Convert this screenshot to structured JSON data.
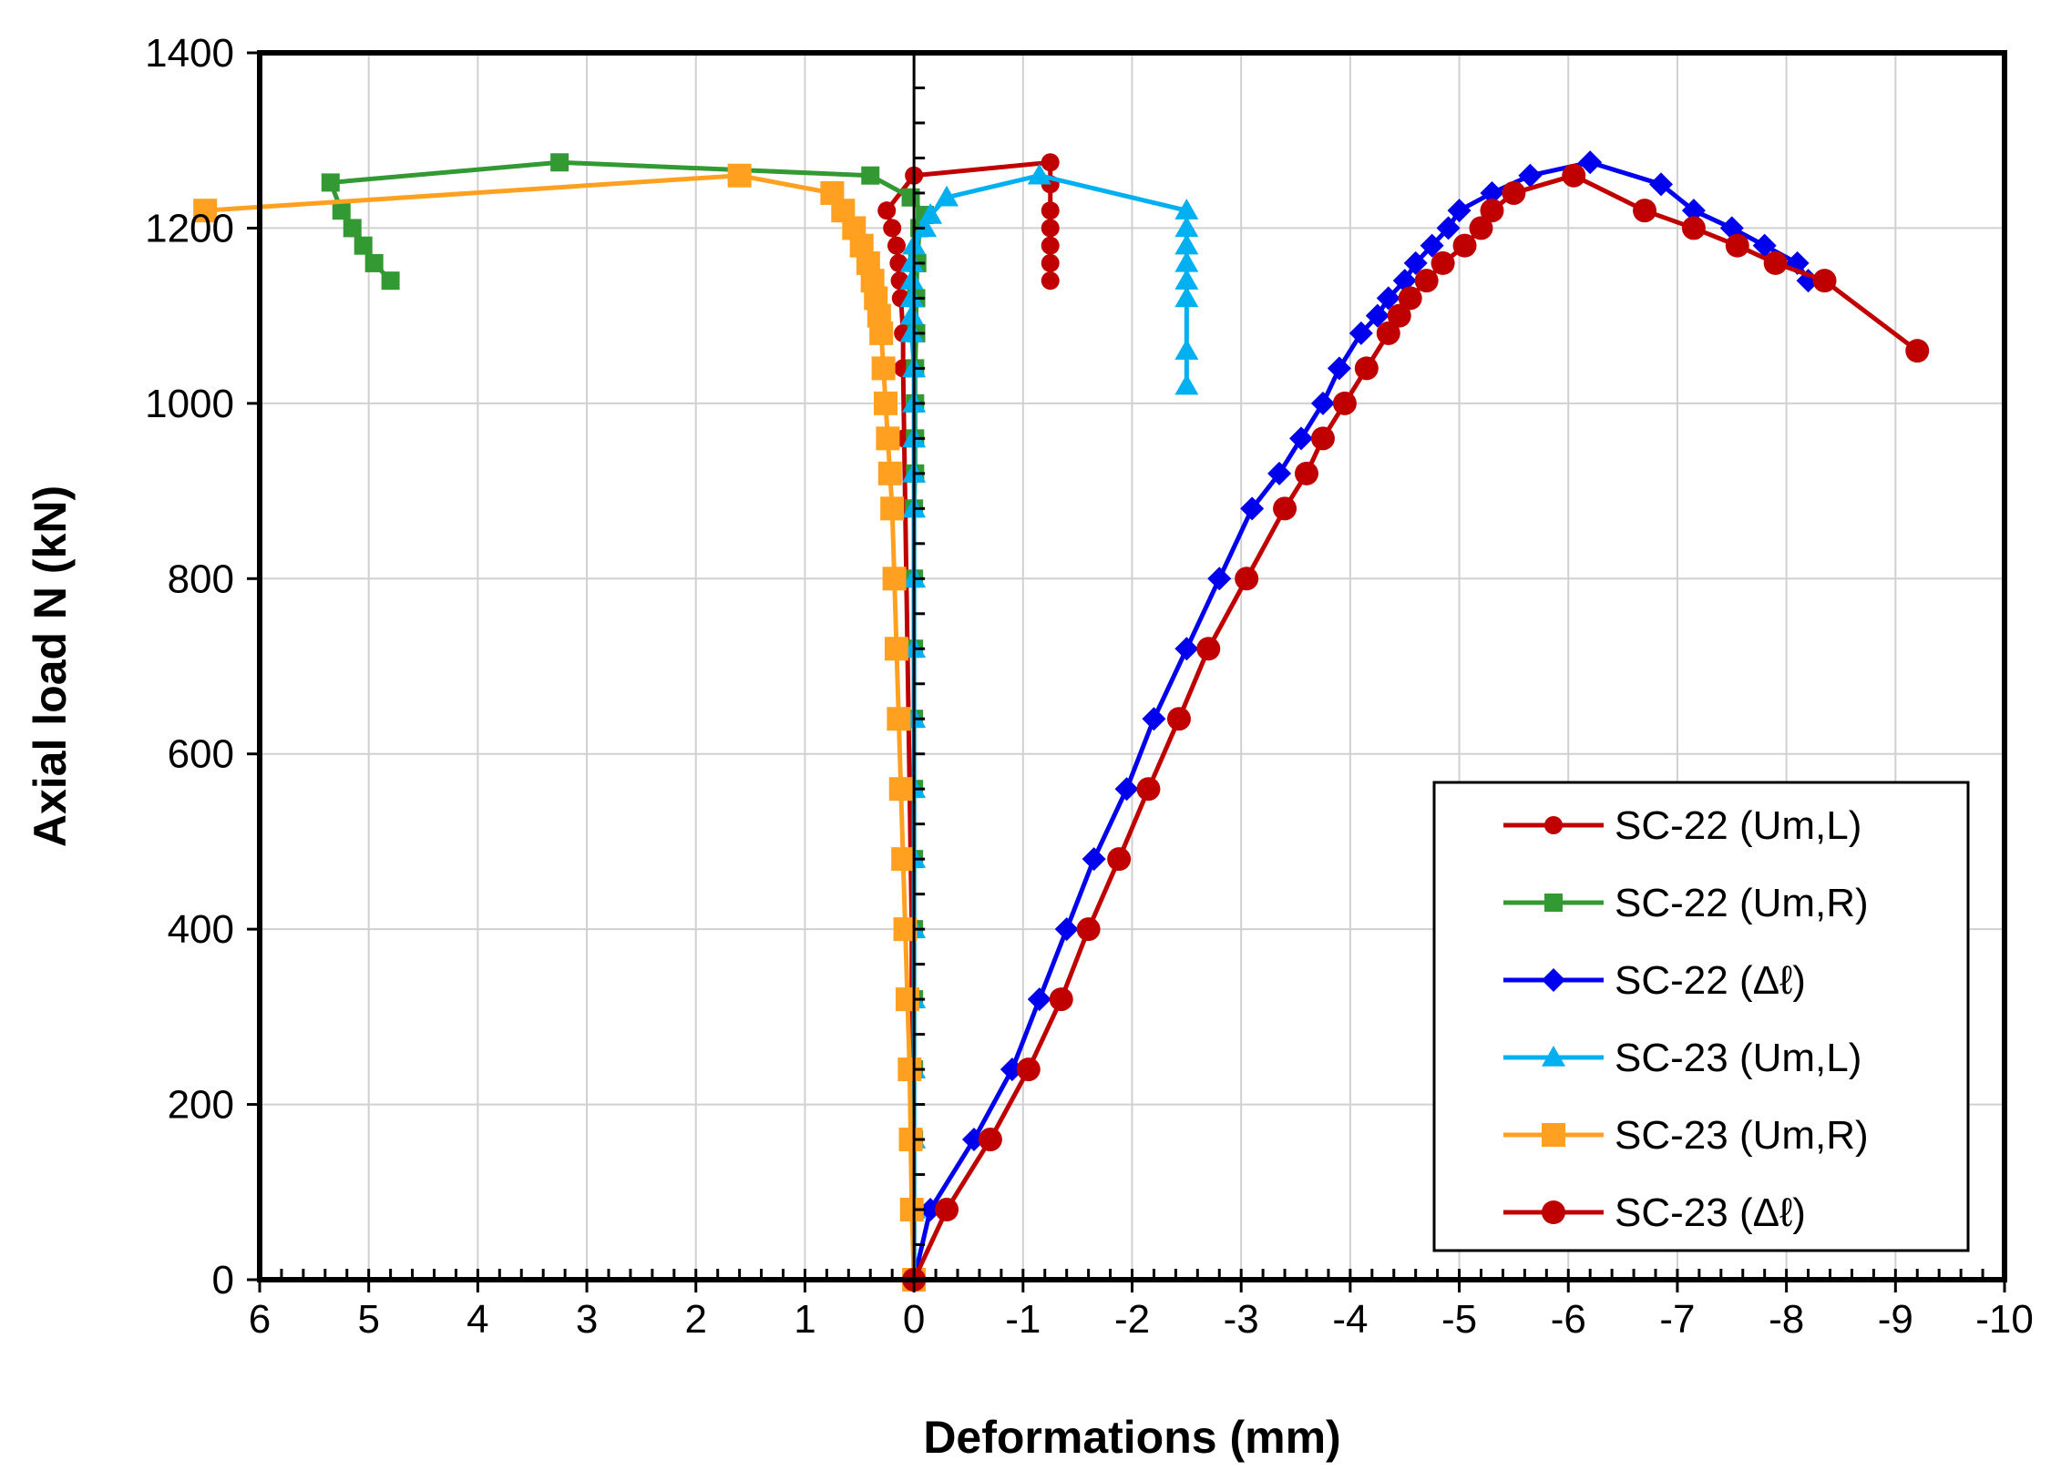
{
  "chart_data": {
    "type": "scatter",
    "xlabel": "Deformations (mm)",
    "ylabel": "Axial load N (kN)",
    "xlim": [
      6,
      -10
    ],
    "ylim": [
      0,
      1400
    ],
    "x_ticks": [
      6,
      5,
      4,
      3,
      2,
      1,
      0,
      -1,
      -2,
      -3,
      -4,
      -5,
      -6,
      -7,
      -8,
      -9,
      -10
    ],
    "x_tick_labels": [
      "6",
      "5",
      "4",
      "3",
      "2",
      "1",
      "0",
      "-1",
      "-2",
      "-3",
      "-4",
      "-5",
      "-6",
      "-7",
      "-8",
      "-9",
      "-10"
    ],
    "y_ticks": [
      0,
      200,
      400,
      600,
      800,
      1000,
      1200,
      1400
    ],
    "y_tick_labels": [
      "0",
      "200",
      "400",
      "600",
      "800",
      "1000",
      "1200",
      "1400"
    ],
    "grid": true,
    "legend_position": "bottom-right",
    "series": [
      {
        "name": "SC-22 (Um,L)",
        "color": "#c00000",
        "marker": "circle",
        "marker_size": "small",
        "points": [
          [
            0,
            0
          ],
          [
            0,
            80
          ],
          [
            0.01,
            160
          ],
          [
            0.01,
            240
          ],
          [
            0.02,
            320
          ],
          [
            0.02,
            400
          ],
          [
            0.03,
            480
          ],
          [
            0.04,
            560
          ],
          [
            0.05,
            640
          ],
          [
            0.06,
            720
          ],
          [
            0.07,
            800
          ],
          [
            0.08,
            880
          ],
          [
            0.09,
            960
          ],
          [
            0.1,
            1040
          ],
          [
            0.1,
            1080
          ],
          [
            0.12,
            1120
          ],
          [
            0.13,
            1140
          ],
          [
            0.14,
            1160
          ],
          [
            0.16,
            1180
          ],
          [
            0.2,
            1200
          ],
          [
            0.25,
            1220
          ],
          [
            0.0,
            1260
          ],
          [
            -1.25,
            1275
          ],
          [
            -1.25,
            1250
          ],
          [
            -1.25,
            1220
          ],
          [
            -1.25,
            1200
          ],
          [
            -1.25,
            1180
          ],
          [
            -1.25,
            1160
          ],
          [
            -1.25,
            1140
          ]
        ]
      },
      {
        "name": "SC-22 (Um,R)",
        "color": "#339933",
        "marker": "square",
        "marker_size": "small",
        "points": [
          [
            0,
            0
          ],
          [
            0,
            80
          ],
          [
            0,
            160
          ],
          [
            0,
            240
          ],
          [
            0,
            320
          ],
          [
            0,
            400
          ],
          [
            0,
            480
          ],
          [
            0,
            560
          ],
          [
            0,
            640
          ],
          [
            0,
            720
          ],
          [
            0,
            800
          ],
          [
            0,
            880
          ],
          [
            -0.01,
            920
          ],
          [
            -0.01,
            960
          ],
          [
            -0.01,
            1000
          ],
          [
            -0.01,
            1040
          ],
          [
            -0.02,
            1080
          ],
          [
            -0.02,
            1120
          ],
          [
            -0.03,
            1160
          ],
          [
            -0.05,
            1200
          ],
          [
            -0.1,
            1215
          ],
          [
            0.03,
            1235
          ],
          [
            0.4,
            1260
          ],
          [
            3.25,
            1275
          ],
          [
            5.35,
            1252
          ],
          [
            5.25,
            1220
          ],
          [
            5.15,
            1200
          ],
          [
            5.05,
            1180
          ],
          [
            4.95,
            1160
          ],
          [
            4.8,
            1140
          ]
        ]
      },
      {
        "name": "SC-22 (Δℓ)",
        "color": "#0000ee",
        "marker": "diamond",
        "marker_size": "small",
        "points": [
          [
            0,
            0
          ],
          [
            -0.15,
            80
          ],
          [
            -0.55,
            160
          ],
          [
            -0.9,
            240
          ],
          [
            -1.15,
            320
          ],
          [
            -1.4,
            400
          ],
          [
            -1.65,
            480
          ],
          [
            -1.95,
            560
          ],
          [
            -2.2,
            640
          ],
          [
            -2.5,
            720
          ],
          [
            -2.8,
            800
          ],
          [
            -3.1,
            880
          ],
          [
            -3.35,
            920
          ],
          [
            -3.55,
            960
          ],
          [
            -3.75,
            1000
          ],
          [
            -3.9,
            1040
          ],
          [
            -4.1,
            1080
          ],
          [
            -4.25,
            1100
          ],
          [
            -4.35,
            1120
          ],
          [
            -4.5,
            1140
          ],
          [
            -4.6,
            1160
          ],
          [
            -4.75,
            1180
          ],
          [
            -4.9,
            1200
          ],
          [
            -5.0,
            1220
          ],
          [
            -5.3,
            1240
          ],
          [
            -5.65,
            1260
          ],
          [
            -6.2,
            1275
          ],
          [
            -6.85,
            1250
          ],
          [
            -7.15,
            1220
          ],
          [
            -7.5,
            1200
          ],
          [
            -7.8,
            1180
          ],
          [
            -8.1,
            1160
          ],
          [
            -8.2,
            1140
          ]
        ]
      },
      {
        "name": "SC-23 (Um,L)",
        "color": "#00b0f0",
        "marker": "triangle",
        "marker_size": "small",
        "points": [
          [
            0,
            0
          ],
          [
            0,
            80
          ],
          [
            0,
            160
          ],
          [
            0,
            240
          ],
          [
            0,
            320
          ],
          [
            0,
            400
          ],
          [
            0,
            480
          ],
          [
            0,
            560
          ],
          [
            0,
            640
          ],
          [
            0,
            720
          ],
          [
            0,
            800
          ],
          [
            0,
            880
          ],
          [
            0,
            920
          ],
          [
            0,
            960
          ],
          [
            0,
            1000
          ],
          [
            0,
            1040
          ],
          [
            0.02,
            1080
          ],
          [
            0.02,
            1100
          ],
          [
            0.02,
            1120
          ],
          [
            0.02,
            1140
          ],
          [
            0.02,
            1160
          ],
          [
            0.0,
            1180
          ],
          [
            -0.1,
            1200
          ],
          [
            -0.15,
            1215
          ],
          [
            -0.3,
            1235
          ],
          [
            -1.15,
            1260
          ],
          [
            -2.5,
            1220
          ],
          [
            -2.5,
            1200
          ],
          [
            -2.5,
            1180
          ],
          [
            -2.5,
            1160
          ],
          [
            -2.5,
            1140
          ],
          [
            -2.5,
            1120
          ],
          [
            -2.5,
            1060
          ],
          [
            -2.5,
            1020
          ]
        ]
      },
      {
        "name": "SC-23 (Um,R)",
        "color": "#ffa020",
        "marker": "square",
        "marker_size": "large",
        "points": [
          [
            0,
            0
          ],
          [
            0.02,
            80
          ],
          [
            0.03,
            160
          ],
          [
            0.04,
            240
          ],
          [
            0.06,
            320
          ],
          [
            0.08,
            400
          ],
          [
            0.1,
            480
          ],
          [
            0.12,
            560
          ],
          [
            0.14,
            640
          ],
          [
            0.16,
            720
          ],
          [
            0.18,
            800
          ],
          [
            0.2,
            880
          ],
          [
            0.22,
            920
          ],
          [
            0.24,
            960
          ],
          [
            0.26,
            1000
          ],
          [
            0.28,
            1040
          ],
          [
            0.3,
            1080
          ],
          [
            0.32,
            1100
          ],
          [
            0.35,
            1120
          ],
          [
            0.38,
            1140
          ],
          [
            0.42,
            1160
          ],
          [
            0.48,
            1180
          ],
          [
            0.55,
            1200
          ],
          [
            0.65,
            1220
          ],
          [
            0.75,
            1240
          ],
          [
            1.6,
            1260
          ],
          [
            6.5,
            1220
          ]
        ]
      },
      {
        "name": "SC-23 (Δℓ)",
        "color": "#c00000",
        "marker": "circle",
        "marker_size": "large",
        "points": [
          [
            0,
            0
          ],
          [
            -0.3,
            80
          ],
          [
            -0.7,
            160
          ],
          [
            -1.05,
            240
          ],
          [
            -1.35,
            320
          ],
          [
            -1.6,
            400
          ],
          [
            -1.88,
            480
          ],
          [
            -2.15,
            560
          ],
          [
            -2.43,
            640
          ],
          [
            -2.7,
            720
          ],
          [
            -3.05,
            800
          ],
          [
            -3.4,
            880
          ],
          [
            -3.6,
            920
          ],
          [
            -3.75,
            960
          ],
          [
            -3.95,
            1000
          ],
          [
            -4.15,
            1040
          ],
          [
            -4.35,
            1080
          ],
          [
            -4.45,
            1100
          ],
          [
            -4.55,
            1120
          ],
          [
            -4.7,
            1140
          ],
          [
            -4.85,
            1160
          ],
          [
            -5.05,
            1180
          ],
          [
            -5.2,
            1200
          ],
          [
            -5.3,
            1220
          ],
          [
            -5.5,
            1240
          ],
          [
            -6.05,
            1260
          ],
          [
            -6.7,
            1220
          ],
          [
            -7.15,
            1200
          ],
          [
            -7.55,
            1180
          ],
          [
            -7.9,
            1160
          ],
          [
            -8.35,
            1140
          ],
          [
            -9.2,
            1060
          ]
        ]
      }
    ]
  }
}
